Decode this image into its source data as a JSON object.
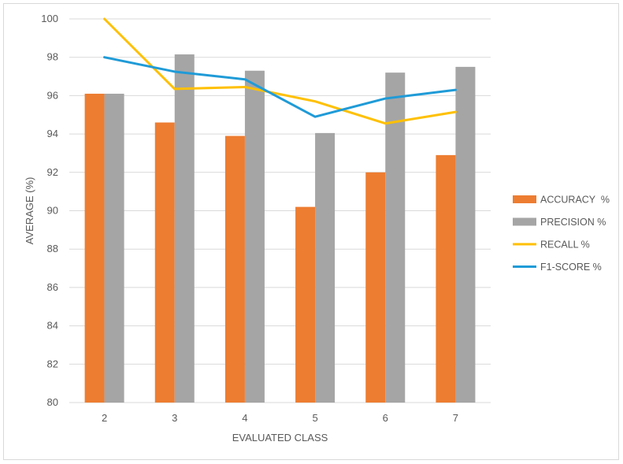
{
  "chart_data": {
    "type": "bar",
    "xlabel": "EVALUATED CLASS",
    "ylabel": "AVERAGE (%)",
    "ylim": [
      80,
      100
    ],
    "ytick_step": 2,
    "grid": true,
    "legend_position": "right",
    "categories": [
      "2",
      "3",
      "4",
      "5",
      "6",
      "7"
    ],
    "series": [
      {
        "name": "ACCURACY  %",
        "kind": "bar",
        "color": "#ED7D31",
        "values": [
          96.1,
          94.6,
          93.9,
          90.2,
          92.0,
          92.9
        ]
      },
      {
        "name": "PRECISION %",
        "kind": "bar",
        "color": "#A5A5A5",
        "values": [
          96.1,
          98.15,
          97.3,
          94.05,
          97.2,
          97.5
        ]
      },
      {
        "name": "RECALL %",
        "kind": "line",
        "color": "#FFC000",
        "values": [
          100.0,
          96.35,
          96.45,
          95.7,
          94.55,
          95.15
        ]
      },
      {
        "name": "F1-SCORE %",
        "kind": "line",
        "color": "#1F9BD7",
        "values": [
          98.0,
          97.25,
          96.85,
          94.9,
          95.85,
          96.3
        ]
      }
    ]
  }
}
